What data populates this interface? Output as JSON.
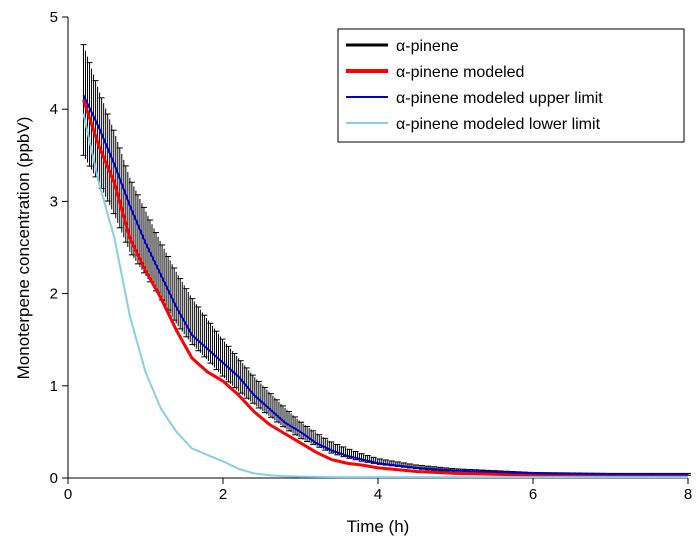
{
  "chart_data": {
    "type": "line",
    "title": "",
    "xlabel": "Time (h)",
    "ylabel": "Monoterpene concentration (ppbV)",
    "xlim": [
      0,
      8
    ],
    "ylim": [
      0,
      5
    ],
    "xticks": [
      0,
      2,
      4,
      6,
      8
    ],
    "yticks": [
      0,
      1,
      2,
      3,
      4,
      5
    ],
    "xtick_labels": [
      "0",
      "2",
      "4",
      "6",
      "8"
    ],
    "ytick_labels": [
      "0",
      "1",
      "2",
      "3",
      "4",
      "5"
    ],
    "grid": false,
    "legend_position": "top-right",
    "series": [
      {
        "name": "α-pinene",
        "color": "#000000",
        "style": "error-bars",
        "x": [
          0.2,
          0.4,
          0.6,
          0.8,
          1.0,
          1.2,
          1.4,
          1.6,
          1.8,
          2.0,
          2.2,
          2.4,
          2.6,
          2.8,
          3.0,
          3.2,
          3.4,
          3.6,
          3.8,
          4.0,
          4.5,
          5.0,
          6.0,
          7.0,
          8.0
        ],
        "y": [
          4.1,
          3.7,
          3.3,
          2.85,
          2.55,
          2.25,
          1.95,
          1.7,
          1.5,
          1.3,
          1.12,
          0.95,
          0.8,
          0.65,
          0.52,
          0.42,
          0.33,
          0.27,
          0.22,
          0.18,
          0.12,
          0.08,
          0.05,
          0.04,
          0.04
        ],
        "yerr": [
          0.6,
          0.5,
          0.45,
          0.4,
          0.35,
          0.3,
          0.28,
          0.25,
          0.22,
          0.2,
          0.18,
          0.15,
          0.13,
          0.11,
          0.09,
          0.07,
          0.06,
          0.05,
          0.04,
          0.03,
          0.02,
          0.02,
          0.01,
          0.01,
          0.01
        ]
      },
      {
        "name": "α-pinene modeled",
        "color": "#ff0000",
        "style": "line-thick",
        "x": [
          0.2,
          0.4,
          0.6,
          0.8,
          1.0,
          1.2,
          1.4,
          1.6,
          1.8,
          2.0,
          2.2,
          2.4,
          2.6,
          2.8,
          3.0,
          3.2,
          3.4,
          3.6,
          3.8,
          4.0,
          4.5,
          5.0,
          6.0,
          7.0,
          8.0
        ],
        "y": [
          4.1,
          3.6,
          3.2,
          2.6,
          2.25,
          1.95,
          1.6,
          1.3,
          1.15,
          1.05,
          0.9,
          0.72,
          0.58,
          0.48,
          0.38,
          0.28,
          0.2,
          0.16,
          0.14,
          0.11,
          0.07,
          0.05,
          0.03,
          0.03,
          0.03
        ]
      },
      {
        "name": "α-pinene modeled upper limit",
        "color": "#0000cc",
        "style": "line",
        "x": [
          0.2,
          0.4,
          0.6,
          0.8,
          1.0,
          1.2,
          1.4,
          1.6,
          1.8,
          2.0,
          2.2,
          2.4,
          2.6,
          2.8,
          3.0,
          3.2,
          3.4,
          3.6,
          3.8,
          4.0,
          4.5,
          5.0,
          6.0,
          7.0,
          8.0
        ],
        "y": [
          4.15,
          3.8,
          3.4,
          2.95,
          2.55,
          2.2,
          1.85,
          1.55,
          1.4,
          1.25,
          1.1,
          0.9,
          0.75,
          0.6,
          0.5,
          0.38,
          0.3,
          0.24,
          0.2,
          0.16,
          0.11,
          0.08,
          0.05,
          0.04,
          0.04
        ]
      },
      {
        "name": "α-pinene modeled lower limit",
        "color": "#87ceeb",
        "style": "line",
        "x": [
          0.2,
          0.4,
          0.6,
          0.8,
          1.0,
          1.2,
          1.4,
          1.6,
          1.8,
          2.0,
          2.2,
          2.4,
          2.6,
          2.8,
          3.0,
          3.5,
          4.0,
          5.0,
          6.0,
          7.0,
          8.0
        ],
        "y": [
          3.95,
          3.2,
          2.6,
          1.75,
          1.15,
          0.75,
          0.5,
          0.32,
          0.25,
          0.18,
          0.1,
          0.05,
          0.03,
          0.02,
          0.015,
          0.01,
          0.01,
          0.01,
          0.01,
          0.01,
          0.01
        ]
      }
    ]
  }
}
